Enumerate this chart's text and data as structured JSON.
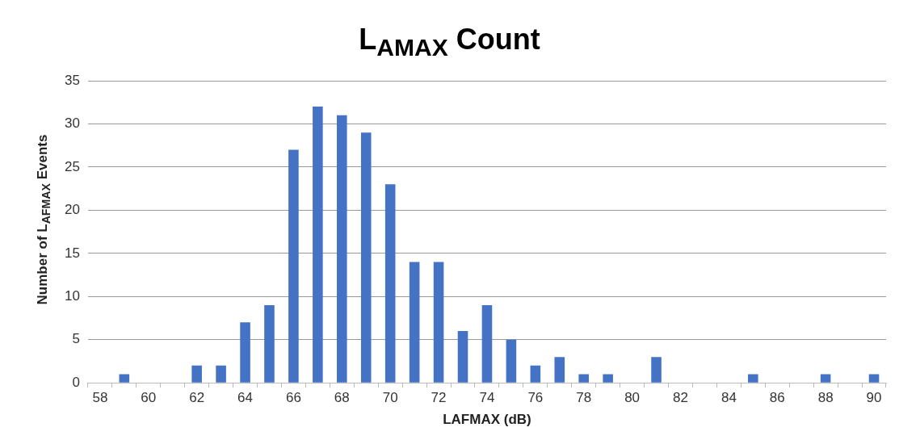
{
  "chart_data": {
    "type": "bar",
    "title": "L$_{AMAX}$ Count",
    "xlabel": "LAFMAX (dB)",
    "ylabel": "Number of L$_{AFMAX}$ Events",
    "categories": [
      "58",
      null,
      "60",
      null,
      "62",
      null,
      "64",
      null,
      "66",
      null,
      "68",
      null,
      "70",
      null,
      "72",
      null,
      "74",
      null,
      "76",
      null,
      "78",
      null,
      "80",
      null,
      "82",
      null,
      "84",
      null,
      "86",
      null,
      "88",
      null,
      "90"
    ],
    "values": [
      0,
      1,
      0,
      0,
      2,
      2,
      7,
      9,
      27,
      32,
      31,
      29,
      23,
      14,
      14,
      6,
      9,
      5,
      2,
      3,
      1,
      1,
      0,
      3,
      0,
      0,
      0,
      1,
      0,
      0,
      1,
      0,
      1
    ],
    "color": "#4472c4",
    "ylim": [
      0,
      35
    ],
    "yticks": [
      0,
      5,
      10,
      15,
      20,
      25,
      30,
      35
    ],
    "grid": "y"
  }
}
